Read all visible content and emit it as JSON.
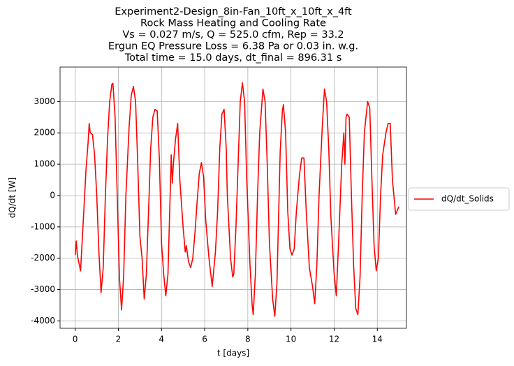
{
  "chart_data": {
    "type": "line",
    "title": [
      "Experiment2-Design_8in-Fan_10ft_x_10ft_x_4ft",
      "Rock Mass Heating and Cooling Rate",
      "Vs = 0.027 m/s, Q = 525.0 cfm, Rep = 33.2",
      "Ergun EQ Pressure Loss = 6.38 Pa or 0.03 in. w.g.",
      "Total time = 15.0 days, dt_final = 896.31 s"
    ],
    "x_label": "t [days]",
    "y_label": "dQ/dt [W]",
    "x": [
      0,
      0.05,
      0.1,
      0.25,
      0.4,
      0.5,
      0.6,
      0.65,
      0.7,
      0.8,
      0.9,
      1.0,
      1.1,
      1.2,
      1.3,
      1.4,
      1.5,
      1.6,
      1.7,
      1.75,
      1.85,
      1.95,
      2.05,
      2.15,
      2.25,
      2.35,
      2.5,
      2.6,
      2.7,
      2.8,
      2.9,
      3.0,
      3.1,
      3.2,
      3.3,
      3.4,
      3.5,
      3.6,
      3.7,
      3.8,
      3.9,
      4.0,
      4.1,
      4.2,
      4.3,
      4.4,
      4.45,
      4.5,
      4.55,
      4.65,
      4.75,
      4.85,
      5.0,
      5.1,
      5.15,
      5.25,
      5.35,
      5.45,
      5.55,
      5.65,
      5.75,
      5.85,
      5.95,
      6.05,
      6.2,
      6.35,
      6.5,
      6.6,
      6.7,
      6.8,
      6.9,
      7.0,
      7.05,
      7.2,
      7.3,
      7.35,
      7.45,
      7.55,
      7.65,
      7.75,
      7.85,
      7.95,
      8.1,
      8.2,
      8.25,
      8.35,
      8.45,
      8.55,
      8.7,
      8.8,
      8.9,
      9.0,
      9.15,
      9.25,
      9.35,
      9.45,
      9.5,
      9.6,
      9.65,
      9.75,
      9.85,
      9.95,
      10.05,
      10.15,
      10.25,
      10.4,
      10.5,
      10.6,
      10.7,
      10.85,
      11.0,
      11.1,
      11.2,
      11.3,
      11.45,
      11.55,
      11.65,
      11.75,
      11.85,
      12.0,
      12.1,
      12.2,
      12.35,
      12.45,
      12.5,
      12.55,
      12.6,
      12.7,
      12.8,
      12.9,
      13.0,
      13.1,
      13.2,
      13.3,
      13.4,
      13.55,
      13.65,
      13.75,
      13.85,
      13.95,
      14.05,
      14.15,
      14.25,
      14.4,
      14.5,
      14.6,
      14.7,
      14.85,
      15.0
    ],
    "series": [
      {
        "name": "dQ/dt_Solids",
        "color": "#ff0000",
        "values": [
          -1900,
          -1450,
          -1900,
          -2400,
          -500,
          800,
          1700,
          2300,
          2000,
          1950,
          1300,
          0,
          -1800,
          -3100,
          -2300,
          0,
          1800,
          3000,
          3550,
          3580,
          2500,
          0,
          -2600,
          -3650,
          -2500,
          0,
          2200,
          3200,
          3480,
          3000,
          1000,
          -1300,
          -2000,
          -3300,
          -2500,
          -500,
          1500,
          2500,
          2750,
          2700,
          1200,
          -1500,
          -2500,
          -3200,
          -2500,
          0,
          1300,
          400,
          1000,
          1800,
          2300,
          500,
          -1000,
          -1800,
          -1600,
          -2100,
          -2300,
          -2000,
          -1200,
          -200,
          700,
          1050,
          600,
          -800,
          -2000,
          -2900,
          -1800,
          -500,
          1500,
          2600,
          2750,
          1500,
          0,
          -2000,
          -2600,
          -2500,
          -1000,
          1000,
          3000,
          3600,
          3000,
          500,
          -2200,
          -3500,
          -3800,
          -2500,
          0,
          2000,
          3400,
          3000,
          1000,
          -1500,
          -3300,
          -3850,
          -2800,
          0,
          1400,
          2700,
          2900,
          2000,
          -500,
          -1700,
          -1900,
          -1700,
          -500,
          700,
          1200,
          1200,
          -400,
          -2300,
          -2900,
          -3450,
          -2200,
          0,
          2200,
          3400,
          3000,
          1500,
          -700,
          -2500,
          -3200,
          -1600,
          1000,
          2000,
          1000,
          2500,
          2600,
          2500,
          0,
          -2200,
          -3600,
          -3800,
          -2600,
          0,
          2000,
          3000,
          2800,
          500,
          -1600,
          -2400,
          -2000,
          0,
          1300,
          2000,
          2300,
          2300,
          500,
          -600,
          -350
        ]
      }
    ],
    "xlim": [
      -0.7,
      15.35
    ],
    "ylim": [
      -4235,
      4100
    ],
    "xticks": [
      0,
      2,
      4,
      6,
      8,
      10,
      12,
      14
    ],
    "yticks": [
      -4000,
      -3000,
      -2000,
      -1000,
      0,
      1000,
      2000,
      3000
    ],
    "grid": true,
    "legend": "outside right"
  }
}
